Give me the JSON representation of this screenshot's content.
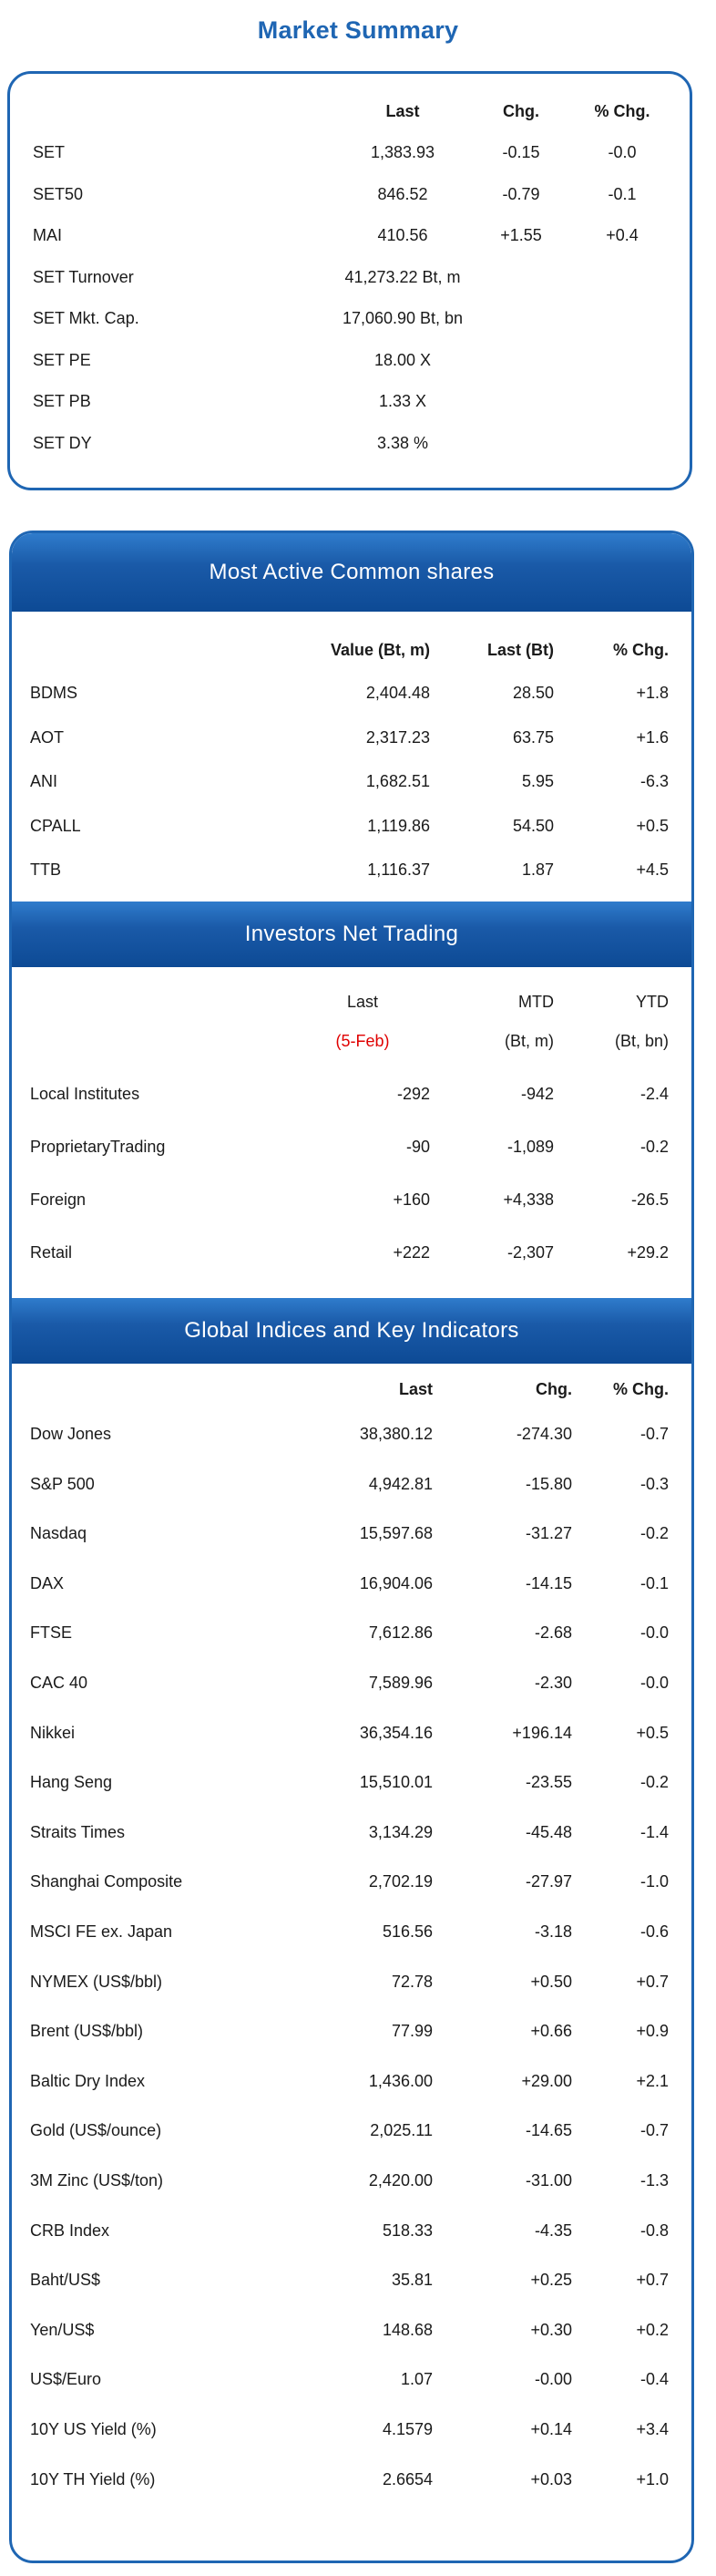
{
  "title": "Market Summary",
  "market_summary": {
    "headers": [
      "Last",
      "Chg.",
      "% Chg."
    ],
    "rows": [
      {
        "name": "SET",
        "last": "1,383.93",
        "chg": "-0.15",
        "pct": "-0.0"
      },
      {
        "name": "SET50",
        "last": "846.52",
        "chg": "-0.79",
        "pct": "-0.1"
      },
      {
        "name": "MAI",
        "last": "410.56",
        "chg": "+1.55",
        "pct": "+0.4"
      },
      {
        "name": "SET Turnover",
        "last": "41,273.22 Bt, m",
        "chg": "",
        "pct": ""
      },
      {
        "name": "SET Mkt. Cap.",
        "last": "17,060.90 Bt, bn",
        "chg": "",
        "pct": ""
      },
      {
        "name": "SET PE",
        "last": "18.00 X",
        "chg": "",
        "pct": ""
      },
      {
        "name": "SET PB",
        "last": "1.33 X",
        "chg": "",
        "pct": ""
      },
      {
        "name": "SET DY",
        "last": "3.38 %",
        "chg": "",
        "pct": ""
      }
    ]
  },
  "most_active": {
    "title": "Most Active Common shares",
    "headers": [
      "Value (Bt, m)",
      "Last (Bt)",
      "% Chg."
    ],
    "rows": [
      {
        "name": "BDMS",
        "value": "2,404.48",
        "last": "28.50",
        "pct": "+1.8"
      },
      {
        "name": "AOT",
        "value": "2,317.23",
        "last": "63.75",
        "pct": "+1.6"
      },
      {
        "name": "ANI",
        "value": "1,682.51",
        "last": "5.95",
        "pct": "-6.3"
      },
      {
        "name": "CPALL",
        "value": "1,119.86",
        "last": "54.50",
        "pct": "+0.5"
      },
      {
        "name": "TTB",
        "value": "1,116.37",
        "last": "1.87",
        "pct": "+4.5"
      }
    ]
  },
  "investors": {
    "title": "Investors Net Trading",
    "headers": [
      "Last",
      "MTD",
      "YTD"
    ],
    "subheaders": [
      "(5-Feb)",
      "(Bt, m)",
      "(Bt, bn)"
    ],
    "rows": [
      {
        "name": "Local Institutes",
        "last": "-292",
        "mtd": "-942",
        "ytd": "-2.4"
      },
      {
        "name": "ProprietaryTrading",
        "last": "-90",
        "mtd": "-1,089",
        "ytd": "-0.2"
      },
      {
        "name": "Foreign",
        "last": "+160",
        "mtd": "+4,338",
        "ytd": "-26.5"
      },
      {
        "name": "Retail",
        "last": "+222",
        "mtd": "-2,307",
        "ytd": "+29.2"
      }
    ]
  },
  "global": {
    "title": "Global Indices and Key Indicators",
    "headers": [
      "Last",
      "Chg.",
      "% Chg."
    ],
    "rows": [
      {
        "name": "Dow Jones",
        "last": "38,380.12",
        "chg": "-274.30",
        "pct": "-0.7"
      },
      {
        "name": "S&P 500",
        "last": "4,942.81",
        "chg": "-15.80",
        "pct": "-0.3"
      },
      {
        "name": "Nasdaq",
        "last": "15,597.68",
        "chg": "-31.27",
        "pct": "-0.2"
      },
      {
        "name": "DAX",
        "last": "16,904.06",
        "chg": "-14.15",
        "pct": "-0.1"
      },
      {
        "name": "FTSE",
        "last": "7,612.86",
        "chg": "-2.68",
        "pct": "-0.0"
      },
      {
        "name": "CAC 40",
        "last": "7,589.96",
        "chg": "-2.30",
        "pct": "-0.0"
      },
      {
        "name": "Nikkei",
        "last": "36,354.16",
        "chg": "+196.14",
        "pct": "+0.5"
      },
      {
        "name": "Hang Seng",
        "last": "15,510.01",
        "chg": "-23.55",
        "pct": "-0.2"
      },
      {
        "name": "Straits Times",
        "last": "3,134.29",
        "chg": "-45.48",
        "pct": "-1.4"
      },
      {
        "name": "Shanghai Composite",
        "last": "2,702.19",
        "chg": "-27.97",
        "pct": "-1.0"
      },
      {
        "name": "MSCI FE ex. Japan",
        "last": "516.56",
        "chg": "-3.18",
        "pct": "-0.6"
      },
      {
        "name": "NYMEX (US$/bbl)",
        "last": "72.78",
        "chg": "+0.50",
        "pct": "+0.7"
      },
      {
        "name": "Brent (US$/bbl)",
        "last": "77.99",
        "chg": "+0.66",
        "pct": "+0.9"
      },
      {
        "name": "Baltic Dry Index",
        "last": "1,436.00",
        "chg": "+29.00",
        "pct": "+2.1"
      },
      {
        "name": "Gold (US$/ounce)",
        "last": "2,025.11",
        "chg": "-14.65",
        "pct": "-0.7"
      },
      {
        "name": "3M Zinc (US$/ton)",
        "last": "2,420.00",
        "chg": "-31.00",
        "pct": "-1.3"
      },
      {
        "name": "CRB Index",
        "last": "518.33",
        "chg": "-4.35",
        "pct": "-0.8"
      },
      {
        "name": "Baht/US$",
        "last": "35.81",
        "chg": "+0.25",
        "pct": "+0.7"
      },
      {
        "name": "Yen/US$",
        "last": "148.68",
        "chg": "+0.30",
        "pct": "+0.2"
      },
      {
        "name": "US$/Euro",
        "last": "1.07",
        "chg": "-0.00",
        "pct": "-0.4"
      },
      {
        "name": "10Y US Yield (%)",
        "last": "4.1579",
        "chg": "+0.14",
        "pct": "+3.4"
      },
      {
        "name": "10Y TH Yield (%)",
        "last": "2.6654",
        "chg": "+0.03",
        "pct": "+1.0"
      }
    ]
  },
  "colors": {
    "accent": "#1f66b3",
    "band": "#1a5aa8",
    "date_highlight": "#e00000"
  }
}
